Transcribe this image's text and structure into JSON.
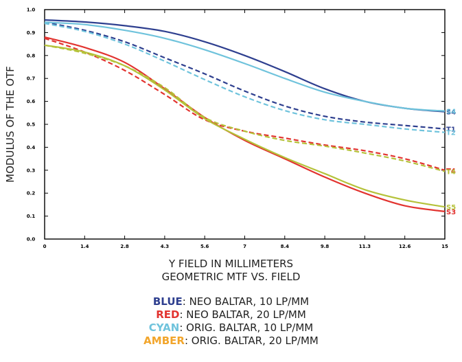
{
  "chart_data": {
    "type": "line",
    "title": "GEOMETRIC MTF VS. FIELD",
    "xlabel": "Y FIELD IN MILLIMETERS",
    "ylabel": "MODULUS OF THE OTF",
    "xlim": [
      0,
      15
    ],
    "ylim": [
      0,
      1
    ],
    "x_ticks": [
      0,
      1.5,
      3,
      4.5,
      6,
      7.5,
      9,
      10.5,
      12,
      13.5,
      15
    ],
    "x_tick_labels": [
      "0",
      "1.4",
      "2.8",
      "4.3",
      "5.6",
      "7",
      "8.4",
      "9.8",
      "11.3",
      "12.6",
      "15"
    ],
    "y_ticks": [
      0,
      0.1,
      0.2,
      0.3,
      0.4,
      0.5,
      0.6,
      0.7,
      0.8,
      0.9,
      1.0
    ],
    "y_tick_labels": [
      "0.0",
      "0.1",
      "0.2",
      "0.3",
      "0.4",
      "0.5",
      "0.6",
      "0.7",
      "0.8",
      "0.9",
      "1.0"
    ],
    "grid": false,
    "x": [
      0,
      1.5,
      3,
      4.5,
      6,
      7.5,
      9,
      10.5,
      12,
      13.5,
      15
    ],
    "series": [
      {
        "color": "#2e3f8f",
        "dash": false,
        "end_label": "S4",
        "values": [
          0.955,
          0.946,
          0.93,
          0.905,
          0.86,
          0.8,
          0.73,
          0.655,
          0.6,
          0.57,
          0.555
        ]
      },
      {
        "color": "#2e3f8f",
        "dash": true,
        "end_label": "T1",
        "values": [
          0.945,
          0.91,
          0.86,
          0.79,
          0.72,
          0.645,
          0.58,
          0.535,
          0.51,
          0.495,
          0.48
        ]
      },
      {
        "color": "#6fc3dc",
        "dash": false,
        "end_label": "S4",
        "values": [
          0.945,
          0.935,
          0.91,
          0.875,
          0.825,
          0.765,
          0.7,
          0.64,
          0.6,
          0.57,
          0.558
        ]
      },
      {
        "color": "#6fc3dc",
        "dash": true,
        "end_label": "T2",
        "values": [
          0.94,
          0.905,
          0.85,
          0.775,
          0.695,
          0.62,
          0.56,
          0.52,
          0.5,
          0.48,
          0.465
        ]
      },
      {
        "color": "#e2332f",
        "dash": false,
        "end_label": "S3",
        "values": [
          0.88,
          0.835,
          0.77,
          0.655,
          0.53,
          0.43,
          0.35,
          0.27,
          0.2,
          0.145,
          0.12
        ]
      },
      {
        "color": "#e2332f",
        "dash": true,
        "end_label": "T4",
        "values": [
          0.875,
          0.815,
          0.735,
          0.63,
          0.52,
          0.47,
          0.44,
          0.41,
          0.385,
          0.35,
          0.3
        ]
      },
      {
        "color": "#b5c23a",
        "dash": false,
        "end_label": "S5",
        "values": [
          0.845,
          0.815,
          0.755,
          0.65,
          0.525,
          0.435,
          0.355,
          0.285,
          0.215,
          0.17,
          0.14
        ]
      },
      {
        "color": "#b5c23a",
        "dash": true,
        "end_label": "T4",
        "values": [
          0.845,
          0.81,
          0.755,
          0.66,
          0.53,
          0.47,
          0.43,
          0.405,
          0.375,
          0.34,
          0.295
        ]
      }
    ]
  },
  "legend": [
    {
      "key": "BLUE",
      "text": ": NEO BALTAR, 10 LP/MM",
      "color": "#2e3f8f"
    },
    {
      "key": "RED",
      "text": ": NEO BALTAR, 20 LP/MM",
      "color": "#e2332f"
    },
    {
      "key": "CYAN",
      "text": ": ORIG. BALTAR, 10 LP/MM",
      "color": "#6fc3dc"
    },
    {
      "key": "AMBER",
      "text": ": ORIG. BALTAR, 20 LP/MM",
      "color": "#f2a52b"
    }
  ]
}
